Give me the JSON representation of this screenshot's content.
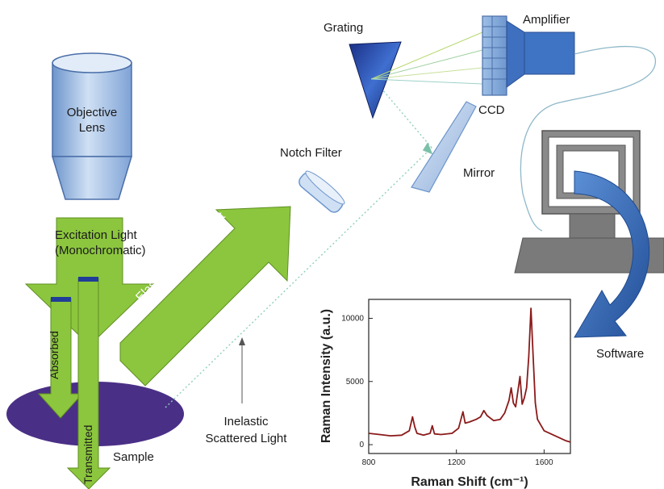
{
  "labels": {
    "grating": "Grating",
    "amplifier": "Amplifier",
    "ccd": "CCD",
    "objective_line1": "Objective",
    "objective_line2": "Lens",
    "notch_filter": "Notch Filter",
    "mirror": "Mirror",
    "excitation_line1": "Excitation Light",
    "excitation_line2": "(Monochromatic)",
    "elastic": "Elastic Scattered Light",
    "absorbed": "Absorbed",
    "transmitted": "Transmitted",
    "inelastic_line1": "Inelastic",
    "inelastic_line2": "Scattered Light",
    "sample": "Sample",
    "software": "Software"
  },
  "colors": {
    "arrow_green": "#8cc63e",
    "arrow_green_dark": "#5f8f22",
    "lens_blue": "#9cbde4",
    "grating_blue": "#1f3d99",
    "sample_purple": "#4a2f86",
    "spectrum_red": "#8b1a1a",
    "software_arrow": "#3b6db3",
    "monitor_gray": "#808080"
  },
  "chart_data": {
    "type": "line",
    "xlabel": "Raman Shift (cm⁻¹)",
    "ylabel": "Raman Intensity (a.u.)",
    "xlim": [
      800,
      1720
    ],
    "ylim": [
      -700,
      11500
    ],
    "xticks": [
      "800",
      "1200",
      "1600"
    ],
    "yticks": [
      "0",
      "5000",
      "10000"
    ],
    "xtick_values": [
      800,
      1200,
      1600
    ],
    "ytick_values": [
      0,
      5000,
      10000
    ],
    "series": [
      {
        "x": [
          800,
          850,
          900,
          950,
          985,
          1000,
          1010,
          1020,
          1050,
          1080,
          1090,
          1100,
          1130,
          1180,
          1210,
          1230,
          1240,
          1260,
          1290,
          1310,
          1325,
          1340,
          1370,
          1400,
          1420,
          1440,
          1450,
          1460,
          1470,
          1480,
          1490,
          1500,
          1510,
          1520,
          1530,
          1540,
          1550,
          1560,
          1570,
          1600,
          1650,
          1700,
          1720
        ],
        "y": [
          900,
          800,
          700,
          750,
          1100,
          2200,
          1400,
          900,
          750,
          900,
          1500,
          850,
          800,
          900,
          1300,
          2600,
          1700,
          1800,
          2000,
          2200,
          2700,
          2300,
          1900,
          2000,
          2500,
          3500,
          4500,
          3300,
          3000,
          4200,
          5400,
          3200,
          3700,
          4500,
          7000,
          10800,
          7000,
          3300,
          2000,
          1100,
          700,
          300,
          200
        ]
      }
    ]
  }
}
